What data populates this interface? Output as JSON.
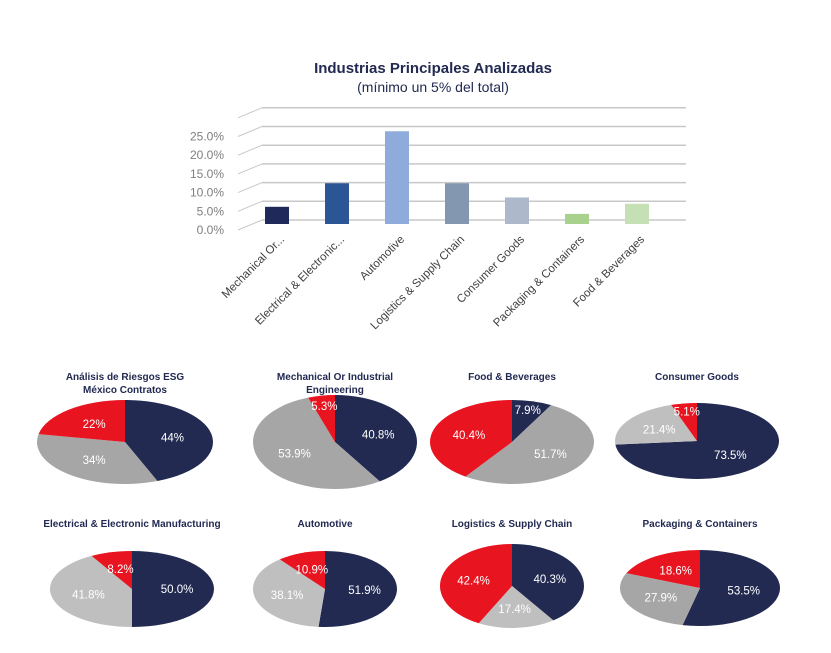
{
  "chart_data": [
    {
      "type": "bar",
      "title": "Industrias Principales Analizadas",
      "subtitle": "(mínimo un 5% del total)",
      "categories": [
        "Mechanical Or...",
        "Electrical & Electronic...",
        "Automotive",
        "Logistics & Supply Chain",
        "Consumer Goods",
        "Packaging & Containers",
        "Food & Beverages"
      ],
      "values": [
        4.6,
        10.9,
        24.8,
        10.9,
        7.1,
        2.7,
        5.4
      ],
      "colors": [
        "#1f2a5a",
        "#2c5596",
        "#8eabdb",
        "#8497b0",
        "#adb9ca",
        "#a9d18e",
        "#c5e0b4"
      ],
      "yticks": [
        "0.0%",
        "5.0%",
        "10.0%",
        "15.0%",
        "20.0%",
        "25.0%"
      ],
      "ylim": [
        0,
        30
      ],
      "grid": true,
      "style": "3d"
    },
    {
      "type": "pie",
      "title": "Análisis de Riesgos ESG México Contratos",
      "title_lines": [
        "Análisis de Riesgos ESG",
        "México Contratos"
      ],
      "labels": [
        "44%",
        "34%",
        "22%"
      ],
      "values": [
        44,
        34,
        22
      ],
      "colors": [
        "#222a52",
        "#a6a6a6",
        "#e8141f"
      ]
    },
    {
      "type": "pie",
      "title": "Mechanical Or Industrial Engineering",
      "title_lines": [
        "Mechanical Or Industrial",
        "Engineering"
      ],
      "labels": [
        "40.8%",
        "53.9%",
        "5.3%"
      ],
      "values": [
        40.8,
        53.9,
        5.3
      ],
      "colors": [
        "#222a52",
        "#a6a6a6",
        "#e8141f"
      ]
    },
    {
      "type": "pie",
      "title": "Food & Beverages",
      "title_lines": [
        "Food & Beverages"
      ],
      "labels": [
        "7.9%",
        "51.7%",
        "40.4%"
      ],
      "values": [
        7.9,
        51.7,
        40.4
      ],
      "colors": [
        "#222a52",
        "#a6a6a6",
        "#e8141f"
      ]
    },
    {
      "type": "pie",
      "title": "Consumer Goods",
      "title_lines": [
        "Consumer Goods"
      ],
      "labels": [
        "73.5%",
        "21.4%",
        "5.1%"
      ],
      "values": [
        73.5,
        21.4,
        5.1
      ],
      "colors": [
        "#222a52",
        "#bfbfbf",
        "#e8141f"
      ]
    },
    {
      "type": "pie",
      "title": "Electrical & Electronic Manufacturing",
      "title_lines": [
        "Electrical & Electronic Manufacturing"
      ],
      "labels": [
        "50.0%",
        "41.8%",
        "8.2%"
      ],
      "values": [
        50.0,
        41.8,
        8.2
      ],
      "colors": [
        "#222a52",
        "#bfbfbf",
        "#e8141f"
      ]
    },
    {
      "type": "pie",
      "title": "Automotive",
      "title_lines": [
        "Automotive"
      ],
      "labels": [
        "51.9%",
        "38.1%",
        "10.9%"
      ],
      "values": [
        51.9,
        38.1,
        10.9
      ],
      "colors": [
        "#222a52",
        "#bfbfbf",
        "#e8141f"
      ]
    },
    {
      "type": "pie",
      "title": "Logistics & Supply Chain",
      "title_lines": [
        "Logistics & Supply Chain"
      ],
      "labels": [
        "40.3%",
        "17.4%",
        "42.4%"
      ],
      "values": [
        40.3,
        17.4,
        42.4
      ],
      "colors": [
        "#222a52",
        "#bfbfbf",
        "#e8141f"
      ]
    },
    {
      "type": "pie",
      "title": "Packaging & Containers",
      "title_lines": [
        "Packaging & Containers"
      ],
      "labels": [
        "53.5%",
        "27.9%",
        "18.6%"
      ],
      "values": [
        53.5,
        27.9,
        18.6
      ],
      "colors": [
        "#222a52",
        "#a6a6a6",
        "#e8141f"
      ]
    }
  ]
}
